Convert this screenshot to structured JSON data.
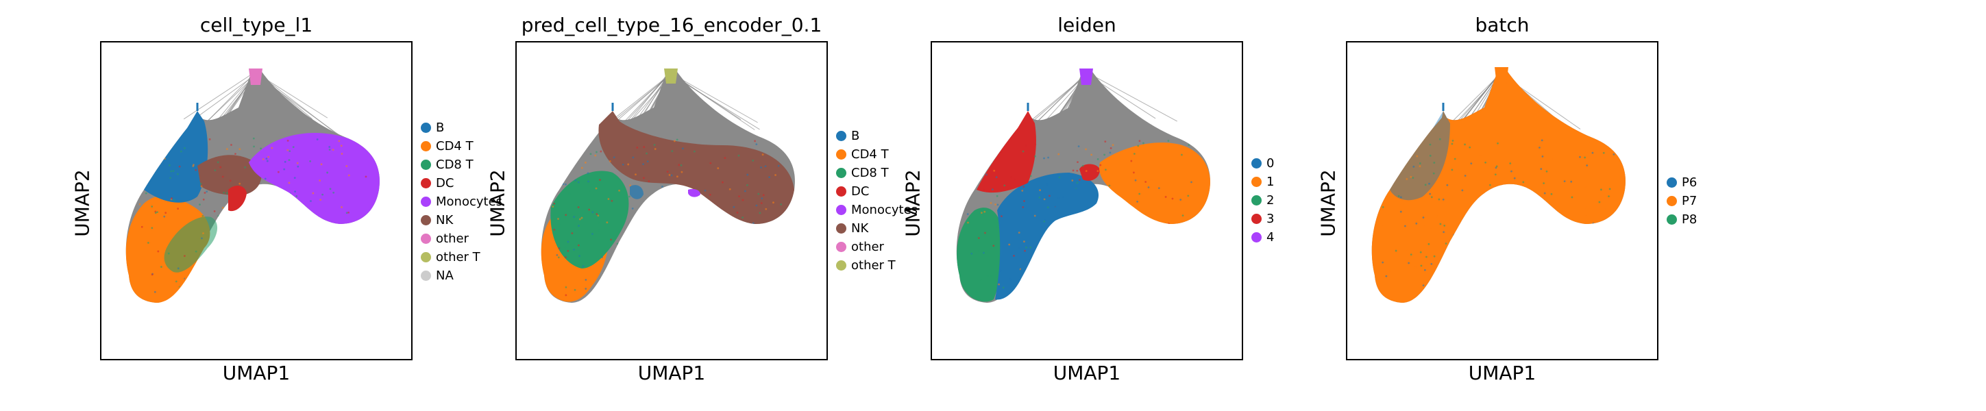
{
  "colors": {
    "B": "#1f77b4",
    "CD4 T": "#ff7f0e",
    "CD8 T": "#279e68",
    "DC": "#d62728",
    "Monocytes": "#aa40fc",
    "NK": "#8c564b",
    "other": "#e377c2",
    "other T": "#b5bd61",
    "NA": "#cccccc",
    "edge": "#7f7f7f"
  },
  "chart_data": [
    {
      "type": "scatter",
      "title": "cell_type_l1",
      "xlabel": "UMAP1",
      "ylabel": "UMAP2",
      "legend_position": "right",
      "grid": false,
      "series": [
        {
          "name": "B",
          "color": "#1f77b4",
          "region": "left-upper arm"
        },
        {
          "name": "CD4 T",
          "color": "#ff7f0e",
          "region": "lower-left lobe"
        },
        {
          "name": "CD8 T",
          "color": "#279e68",
          "region": "lower-left lobe (mixed)"
        },
        {
          "name": "DC",
          "color": "#d62728",
          "region": "center-bottom strip"
        },
        {
          "name": "Monocytes",
          "color": "#aa40fc",
          "region": "right lobe"
        },
        {
          "name": "NK",
          "color": "#8c564b",
          "region": "center"
        },
        {
          "name": "other",
          "color": "#e377c2",
          "region": "top tip"
        },
        {
          "name": "other T",
          "color": "#b5bd61",
          "region": "scattered"
        },
        {
          "name": "NA",
          "color": "#cccccc",
          "region": "none"
        }
      ]
    },
    {
      "type": "scatter",
      "title": "pred_cell_type_16_encoder_0.1",
      "xlabel": "UMAP1",
      "ylabel": "UMAP2",
      "legend_position": "right",
      "grid": false,
      "series": [
        {
          "name": "B",
          "color": "#1f77b4"
        },
        {
          "name": "CD4 T",
          "color": "#ff7f0e"
        },
        {
          "name": "CD8 T",
          "color": "#279e68"
        },
        {
          "name": "DC",
          "color": "#d62728"
        },
        {
          "name": "Monocytes",
          "color": "#aa40fc"
        },
        {
          "name": "NK",
          "color": "#8c564b"
        },
        {
          "name": "other",
          "color": "#e377c2"
        },
        {
          "name": "other T",
          "color": "#b5bd61"
        }
      ]
    },
    {
      "type": "scatter",
      "title": "leiden",
      "xlabel": "UMAP1",
      "ylabel": "UMAP2",
      "legend_position": "right",
      "grid": false,
      "series": [
        {
          "name": "0",
          "color": "#1f77b4"
        },
        {
          "name": "1",
          "color": "#ff7f0e"
        },
        {
          "name": "2",
          "color": "#279e68"
        },
        {
          "name": "3",
          "color": "#d62728"
        },
        {
          "name": "4",
          "color": "#aa40fc"
        }
      ]
    },
    {
      "type": "scatter",
      "title": "batch",
      "xlabel": "UMAP1",
      "ylabel": "UMAP2",
      "legend_position": "right",
      "grid": false,
      "series": [
        {
          "name": "P6",
          "color": "#1f77b4"
        },
        {
          "name": "P7",
          "color": "#ff7f0e"
        },
        {
          "name": "P8",
          "color": "#279e68"
        }
      ]
    }
  ]
}
